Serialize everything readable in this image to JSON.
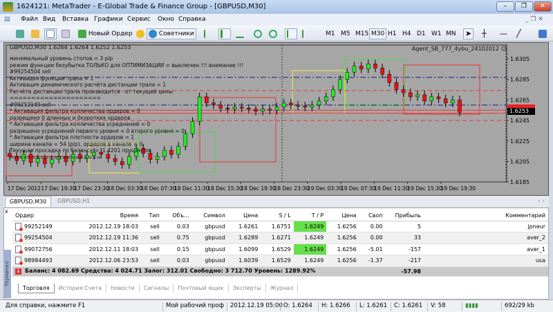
{
  "window": {
    "title": "1624121: MetaTrader - E-Global Trade & Finance Group - [GBPUSD,M30]"
  },
  "menu": [
    "Файл",
    "Вид",
    "Вставка",
    "Графики",
    "Сервис",
    "Окно",
    "Справка"
  ],
  "toolbar": {
    "new_order": "Новый Ордер",
    "experts": "Советники",
    "timeframes": [
      "M1",
      "M5",
      "M15",
      "M30",
      "H1",
      "H4",
      "D1",
      "W1",
      "MN"
    ],
    "active_timeframe": "M30"
  },
  "chart": {
    "header": "GBPUSD,M30  1.6264 1.6264 1.6252 1.6253",
    "expert": "Agent_SB_777_4ybu_24102012 ☺",
    "overlay": [
      "минимальный уровень стопов =  3  pip",
      "режим функции безубытка ТОЛЬКО для ОПТИМИЗАЦИИ =  выключен  !!! внимание !!!",
      "#99254504 sell",
      "Активация функции трала = 1",
      "Активация динамического расчёта дистанции трала =  1",
      "Расчёта дистанции трала производится - от  текущей цены",
      "=====================",
      "#99252149 sell",
      "* Активация фильтра колличества ордеров =  0",
      "разрешено 0 длинных и 0коротких ордеров",
      "* Активация фильтра колличества усреднений =  0",
      "разрешено усреднений первого уровня =  0 второго уровня =  0",
      "* Активация фильтра плотности ордеров = 1",
      "ширина канала = 54 (pip), ордеров в канале =  0",
      "Текущая просадка по балансу =  -1.4201 процентов",
      "====================="
    ],
    "price_ticks": [
      "1.6305",
      "1.6285",
      "1.6265",
      "1.6245",
      "1.6225",
      "1.6205",
      "1.6185"
    ],
    "price_tick_values": [
      1.6305,
      1.6285,
      1.6265,
      1.6245,
      1.6225,
      1.6205,
      1.6185
    ],
    "bid_label": "1.6253",
    "time_ticks": [
      "17 Dec 2012",
      "17 Dec 19:30",
      "17 Dec 23:30",
      "18 Dec 03:30",
      "18 Dec 07:30",
      "18 Dec 11:30",
      "18 Dec 15:30",
      "18 Dec 19:30",
      "18 Dec 23:30",
      "19 Dec 03:30",
      "19 Dec 07:30",
      "19 Dec 11:30",
      "19 Dec 15:30",
      "19 Dec 19:30"
    ],
    "closes": [
      1.621,
      1.6206,
      1.6212,
      1.6204,
      1.6208,
      1.6203,
      1.6207,
      1.621,
      1.6205,
      1.6212,
      1.6208,
      1.6211,
      1.6214,
      1.6212,
      1.6208,
      1.6205,
      1.6202,
      1.621,
      1.6218,
      1.6213,
      1.6207,
      1.621,
      1.6216,
      1.6212,
      1.622,
      1.6232,
      1.6244,
      1.6268,
      1.6262,
      1.626,
      1.6257,
      1.6256,
      1.6258,
      1.6257,
      1.6256,
      1.6254,
      1.6256,
      1.6255,
      1.6258,
      1.6262,
      1.626,
      1.6259,
      1.6258,
      1.626,
      1.6264,
      1.6268,
      1.6275,
      1.6285,
      1.6292,
      1.6298,
      1.6295,
      1.63,
      1.6296,
      1.629,
      1.6282,
      1.6275,
      1.6272,
      1.6268,
      1.627,
      1.6264,
      1.6268,
      1.6266,
      1.6262,
      1.6265,
      1.6253
    ],
    "lines": {
      "navy": [
        1.6287,
        1.626
      ],
      "red_dashed": [
        1.6274,
        1.6245
      ],
      "red_solid": [
        1.6255,
        1.6252
      ]
    }
  },
  "chart_tabs": [
    "GBPUSD,M30",
    "GBPUSD,H1"
  ],
  "terminal": {
    "side_label": "Терминал",
    "columns": [
      "Ордер",
      "Время",
      "Тип",
      "Объ...",
      "Символ",
      "Цена",
      "S / L",
      "T / P",
      "Цена",
      "Своп",
      "Прибыль",
      "Комментарий"
    ],
    "rows": [
      [
        "99252149",
        "2012.12.19 18:03",
        "sell",
        "0.03",
        "gbpusd",
        "1.6261",
        "1.6751",
        "1.6249",
        "1.6256",
        "0.00",
        "5",
        "jpneur"
      ],
      [
        "99254504",
        "2012.12.19 11:36",
        "sell",
        "0.75",
        "gbpusd",
        "1.6289",
        "1.6271",
        "1.6249",
        "1.6256",
        "0.00",
        "33",
        "aver_2"
      ],
      [
        "99072756",
        "2012.12.11 18:03",
        "sell",
        "0.15",
        "gbpusd",
        "1.6099",
        "1.6529",
        "1.6249",
        "1.6256",
        "-5.01",
        "-157",
        "aver_1"
      ],
      [
        "98984493",
        "2012.12.06 23:53",
        "sell",
        "0.03",
        "gbpusd",
        "1.6039",
        "1.6529",
        "1.6249",
        "1.6256",
        "-1.37",
        "-217",
        "usa"
      ]
    ],
    "balance": "Баланс: 4 082.69  Средства: 4 024.71  Залог: 312.01  Свободно: 3 712.70  Уровень: 1289.92%",
    "total_profit": "-57.98",
    "tabs": [
      "Торговля",
      "История Счета",
      "Новости",
      "Сигналы",
      "Почтовый ящик",
      "Эксперты",
      "Журнал"
    ]
  },
  "status": {
    "help": "Для справки, нажмите F1",
    "profile": "Мой рабочий проф",
    "time": "2012.12.19 05:00",
    "open": "O: 1.6264",
    "high": "H: 1.6266",
    "low": "L: 1.6261",
    "close": "C: 1.6261",
    "volume": "V: 58",
    "traffic": "692/29 kb"
  }
}
